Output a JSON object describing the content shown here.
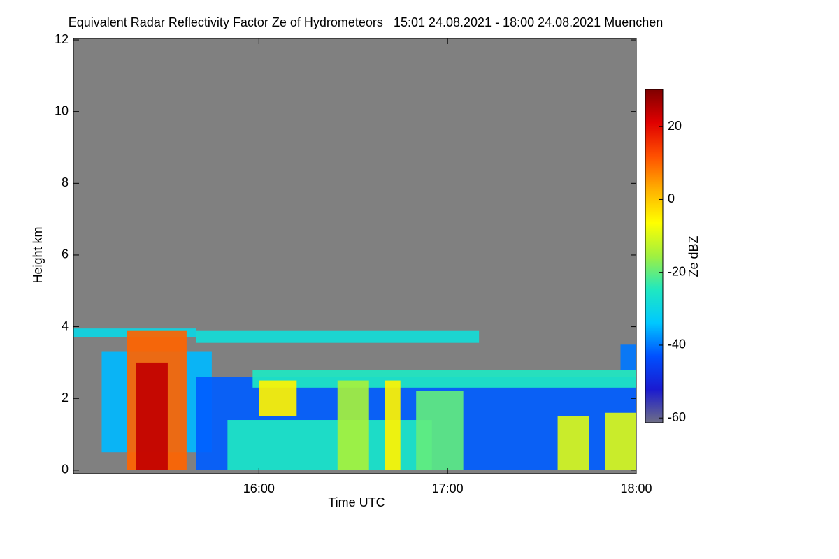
{
  "chart_data": {
    "type": "time-height",
    "title": "Equivalent Radar Reflectivity Factor Ze of Hydrometeors   15:01 24.08.2021 - 18:00 24.08.2021 Muenchen",
    "xlabel": "Time UTC",
    "ylabel": "Height km",
    "xlim": [
      "15:01",
      "18:00"
    ],
    "xticks": [
      "16:00",
      "17:00",
      "18:00"
    ],
    "ylim": [
      -0.1,
      12.04
    ],
    "yticks": [
      0,
      2,
      4,
      6,
      8,
      10,
      12
    ],
    "colorbar": {
      "label": "Ze dBZ",
      "lim": [
        -61.3,
        30.2
      ],
      "ticks": [
        -60,
        -40,
        -20,
        0,
        20
      ],
      "colors": [
        "#6e6e86",
        "#1a1ad0",
        "#0050ff",
        "#00c8ff",
        "#20e8c0",
        "#a0f040",
        "#ffff00",
        "#ffb000",
        "#ff5000",
        "#e00000",
        "#800000"
      ]
    },
    "echoes": [
      {
        "start": "15:01",
        "end": "15:40",
        "base": 3.7,
        "top": 3.95,
        "value": -30
      },
      {
        "start": "15:40",
        "end": "17:10",
        "base": 3.55,
        "top": 3.9,
        "value": -28
      },
      {
        "start": "15:10",
        "end": "15:45",
        "base": 0.5,
        "top": 3.3,
        "value": -35
      },
      {
        "start": "15:40",
        "end": "18:00",
        "base": 0,
        "top": 2.6,
        "value": -42
      },
      {
        "start": "15:58",
        "end": "18:00",
        "base": 2.3,
        "top": 2.8,
        "value": -25
      },
      {
        "start": "15:50",
        "end": "16:55",
        "base": 0,
        "top": 1.4,
        "value": -25
      },
      {
        "start": "15:18",
        "end": "15:37",
        "base": 0,
        "top": 3.9,
        "value": 10
      },
      {
        "start": "15:21",
        "end": "15:31",
        "base": 0,
        "top": 3,
        "value": 24
      },
      {
        "start": "16:00",
        "end": "16:12",
        "base": 1.5,
        "top": 2.5,
        "value": -5
      },
      {
        "start": "16:25",
        "end": "16:35",
        "base": 0,
        "top": 2.5,
        "value": -15
      },
      {
        "start": "16:40",
        "end": "16:45",
        "base": 0,
        "top": 2.5,
        "value": -5
      },
      {
        "start": "16:50",
        "end": "17:05",
        "base": 0,
        "top": 2.2,
        "value": -20
      },
      {
        "start": "17:35",
        "end": "17:45",
        "base": 0,
        "top": 1.5,
        "value": -10
      },
      {
        "start": "17:50",
        "end": "18:00",
        "base": 0,
        "top": 1.6,
        "value": -10
      },
      {
        "start": "17:55",
        "end": "18:00",
        "base": 2.8,
        "top": 3.5,
        "value": -40
      }
    ]
  }
}
